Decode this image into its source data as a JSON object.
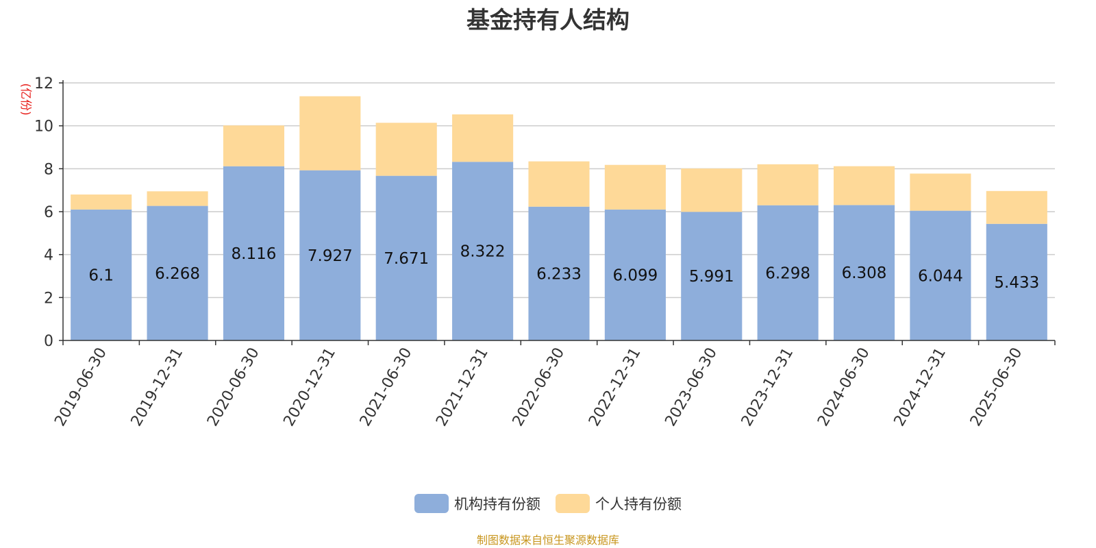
{
  "chart_data": {
    "type": "bar",
    "stacked": true,
    "title": "基金持有人结构",
    "ylabel": "(亿份)",
    "ylim": [
      0,
      12
    ],
    "yticks": [
      0,
      2,
      4,
      6,
      8,
      10,
      12
    ],
    "grid": true,
    "legend_position": "bottom",
    "categories": [
      "2019-06-30",
      "2019-12-31",
      "2020-06-30",
      "2020-12-31",
      "2021-06-30",
      "2021-12-31",
      "2022-06-30",
      "2022-12-31",
      "2023-06-30",
      "2023-12-31",
      "2024-06-30",
      "2024-12-31",
      "2025-06-30"
    ],
    "series": [
      {
        "name": "机构持有份额",
        "color": "#8eaedb",
        "values": [
          6.1,
          6.268,
          8.116,
          7.927,
          7.671,
          8.322,
          6.233,
          6.099,
          5.991,
          6.298,
          6.308,
          6.044,
          5.433
        ],
        "labels": [
          "6.1",
          "6.268",
          "8.116",
          "7.927",
          "7.671",
          "8.322",
          "6.233",
          "6.099",
          "5.991",
          "6.298",
          "6.308",
          "6.044",
          "5.433"
        ]
      },
      {
        "name": "个人持有份额",
        "color": "#fed998",
        "values": [
          0.7,
          0.68,
          1.9,
          3.45,
          2.47,
          2.21,
          2.11,
          2.08,
          2.02,
          1.91,
          1.81,
          1.73,
          1.53
        ]
      }
    ]
  },
  "source_text": "制图数据来自恒生聚源数据库",
  "colors": {
    "axis": "#333333",
    "grid": "#cccccc",
    "ylabel": "#e8231f",
    "source": "#c8961e"
  }
}
